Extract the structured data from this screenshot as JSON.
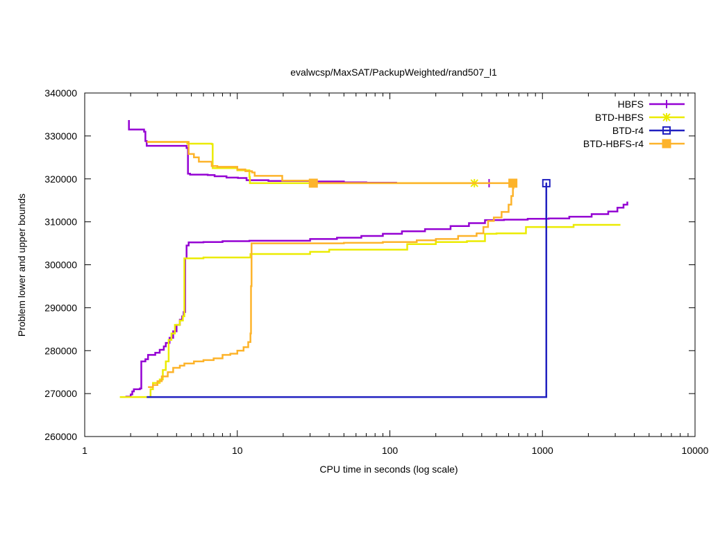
{
  "chart_data": {
    "type": "line",
    "title": "evalwcsp/MaxSAT/PackupWeighted/rand507_l1",
    "xlabel": "CPU time in seconds (log scale)",
    "ylabel": "Problem lower and upper bounds",
    "xscale": "log",
    "xlim": [
      1,
      10000
    ],
    "ylim": [
      260000,
      340000
    ],
    "xticks": [
      1,
      10,
      100,
      1000,
      10000
    ],
    "xtick_labels": [
      "1",
      "10",
      "100",
      "1000",
      "10000"
    ],
    "yticks": [
      260000,
      270000,
      280000,
      290000,
      300000,
      310000,
      320000,
      330000,
      340000
    ],
    "ytick_labels": [
      "260000",
      "270000",
      "280000",
      "290000",
      "300000",
      "310000",
      "320000",
      "330000",
      "340000"
    ],
    "legend_position": "top-right",
    "grid": false,
    "series": [
      {
        "name": "HBFS",
        "color": "#9400d3",
        "marker": "plus",
        "marker_points": [
          [
            447,
            319000
          ]
        ],
        "curves": [
          [
            [
              1.95,
              333700
            ],
            [
              1.95,
              331500
            ],
            [
              2.2,
              331500
            ],
            [
              2.45,
              331000
            ],
            [
              2.5,
              328800
            ],
            [
              2.55,
              327700
            ],
            [
              4.55,
              327700
            ],
            [
              4.65,
              327200
            ],
            [
              4.75,
              321200
            ],
            [
              4.9,
              321000
            ],
            [
              5.5,
              321000
            ],
            [
              6.4,
              320900
            ],
            [
              7.1,
              320600
            ],
            [
              8.5,
              320300
            ],
            [
              10.1,
              320200
            ],
            [
              11.5,
              319700
            ],
            [
              16,
              319500
            ],
            [
              22,
              319500
            ],
            [
              32,
              319400
            ],
            [
              50,
              319200
            ],
            [
              70,
              319100
            ],
            [
              110,
              319000
            ]
          ],
          [
            [
              1.85,
              269300
            ],
            [
              2.0,
              269800
            ],
            [
              2.05,
              270500
            ],
            [
              2.1,
              271000
            ],
            [
              2.3,
              271200
            ],
            [
              2.35,
              277500
            ],
            [
              2.5,
              278000
            ],
            [
              2.6,
              279000
            ],
            [
              2.9,
              279500
            ],
            [
              3.1,
              280200
            ],
            [
              3.3,
              281000
            ],
            [
              3.4,
              281800
            ],
            [
              3.6,
              283000
            ],
            [
              3.8,
              284500
            ],
            [
              4.0,
              286000
            ],
            [
              4.2,
              287200
            ],
            [
              4.35,
              288000
            ],
            [
              4.45,
              289000
            ],
            [
              4.55,
              301500
            ],
            [
              4.65,
              304500
            ],
            [
              4.8,
              305200
            ],
            [
              6,
              305300
            ],
            [
              8,
              305500
            ],
            [
              12,
              305600
            ],
            [
              20,
              305600
            ],
            [
              30,
              306000
            ],
            [
              45,
              306300
            ],
            [
              65,
              306700
            ],
            [
              90,
              307200
            ],
            [
              120,
              307800
            ],
            [
              170,
              308300
            ],
            [
              250,
              309000
            ],
            [
              330,
              309700
            ],
            [
              420,
              310400
            ],
            [
              560,
              310500
            ],
            [
              800,
              310700
            ],
            [
              1100,
              310800
            ],
            [
              1500,
              311200
            ],
            [
              2100,
              311800
            ],
            [
              2700,
              312400
            ],
            [
              3100,
              313300
            ],
            [
              3400,
              314000
            ],
            [
              3600,
              314700
            ]
          ]
        ]
      },
      {
        "name": "BTD-HBFS",
        "color": "#ebeb00",
        "marker": "star",
        "marker_points": [
          [
            358,
            319000
          ]
        ],
        "curves": [
          [
            [
              2.6,
              328600
            ],
            [
              4.6,
              328600
            ],
            [
              4.7,
              328200
            ],
            [
              6.8,
              328100
            ],
            [
              6.9,
              322500
            ],
            [
              10,
              322000
            ],
            [
              12,
              320500
            ],
            [
              12.1,
              319000
            ],
            [
              40,
              319000
            ],
            [
              100,
              319000
            ],
            [
              200,
              319000
            ],
            [
              358,
              319000
            ]
          ],
          [
            [
              1.7,
              269200
            ],
            [
              2.6,
              269200
            ],
            [
              2.7,
              271000
            ],
            [
              2.8,
              272500
            ],
            [
              3.1,
              273300
            ],
            [
              3.25,
              275500
            ],
            [
              3.4,
              277500
            ],
            [
              3.55,
              282500
            ],
            [
              3.7,
              284000
            ],
            [
              3.9,
              286000
            ],
            [
              4.2,
              287000
            ],
            [
              4.4,
              288000
            ],
            [
              4.5,
              301500
            ],
            [
              6,
              301700
            ],
            [
              8,
              301700
            ],
            [
              11,
              301700
            ],
            [
              12.2,
              302500
            ],
            [
              15,
              302500
            ],
            [
              20,
              302500
            ],
            [
              26,
              302500
            ],
            [
              30,
              303000
            ],
            [
              40,
              303500
            ],
            [
              60,
              303500
            ],
            [
              100,
              303500
            ],
            [
              130,
              304800
            ],
            [
              200,
              305300
            ],
            [
              320,
              305500
            ],
            [
              420,
              307200
            ],
            [
              500,
              307300
            ],
            [
              700,
              307300
            ],
            [
              780,
              308800
            ],
            [
              1100,
              308800
            ],
            [
              1600,
              309300
            ],
            [
              2200,
              309300
            ],
            [
              3200,
              309500
            ]
          ]
        ]
      },
      {
        "name": "BTD-r4",
        "color": "#2020c0",
        "marker": "square-open",
        "marker_points": [
          [
            1060,
            319000
          ]
        ],
        "curves": [
          [
            [
              2.55,
              269200
            ],
            [
              1060,
              269200
            ],
            [
              1060,
              319000
            ]
          ]
        ]
      },
      {
        "name": "BTD-HBFS-r4",
        "color": "#fdb32a",
        "marker": "square-filled",
        "marker_points": [
          [
            31.5,
            319000
          ],
          [
            640,
            319000
          ]
        ],
        "curves": [
          [
            [
              2.55,
              328600
            ],
            [
              4.7,
              328600
            ],
            [
              4.8,
              325800
            ],
            [
              5.2,
              325000
            ],
            [
              5.6,
              324000
            ],
            [
              6.5,
              324000
            ],
            [
              6.8,
              323000
            ],
            [
              7.4,
              322800
            ],
            [
              8.5,
              322800
            ],
            [
              10,
              322200
            ],
            [
              11.3,
              321800
            ],
            [
              12.5,
              321500
            ],
            [
              13,
              320700
            ],
            [
              19.5,
              320700
            ],
            [
              19.7,
              319600
            ],
            [
              25,
              319600
            ],
            [
              31.5,
              319000
            ],
            [
              100,
              319000
            ],
            [
              300,
              319000
            ],
            [
              640,
              319000
            ]
          ],
          [
            [
              2.6,
              271500
            ],
            [
              2.8,
              272000
            ],
            [
              3.0,
              272900
            ],
            [
              3.2,
              274000
            ],
            [
              3.5,
              275000
            ],
            [
              3.8,
              276000
            ],
            [
              4.2,
              276500
            ],
            [
              4.5,
              277000
            ],
            [
              5.2,
              277500
            ],
            [
              6,
              277800
            ],
            [
              7,
              278200
            ],
            [
              8,
              279000
            ],
            [
              9,
              279300
            ],
            [
              10,
              280000
            ],
            [
              11,
              280800
            ],
            [
              11.8,
              282000
            ],
            [
              12.2,
              284000
            ],
            [
              12.3,
              295000
            ],
            [
              12.4,
              305000
            ],
            [
              25,
              305000
            ],
            [
              50,
              305100
            ],
            [
              90,
              305300
            ],
            [
              150,
              305700
            ],
            [
              200,
              306000
            ],
            [
              280,
              306700
            ],
            [
              370,
              307300
            ],
            [
              410,
              308800
            ],
            [
              440,
              310200
            ],
            [
              480,
              311000
            ],
            [
              540,
              312300
            ],
            [
              600,
              314000
            ],
            [
              625,
              316000
            ],
            [
              640,
              317800
            ],
            [
              645,
              319000
            ]
          ]
        ]
      }
    ]
  }
}
